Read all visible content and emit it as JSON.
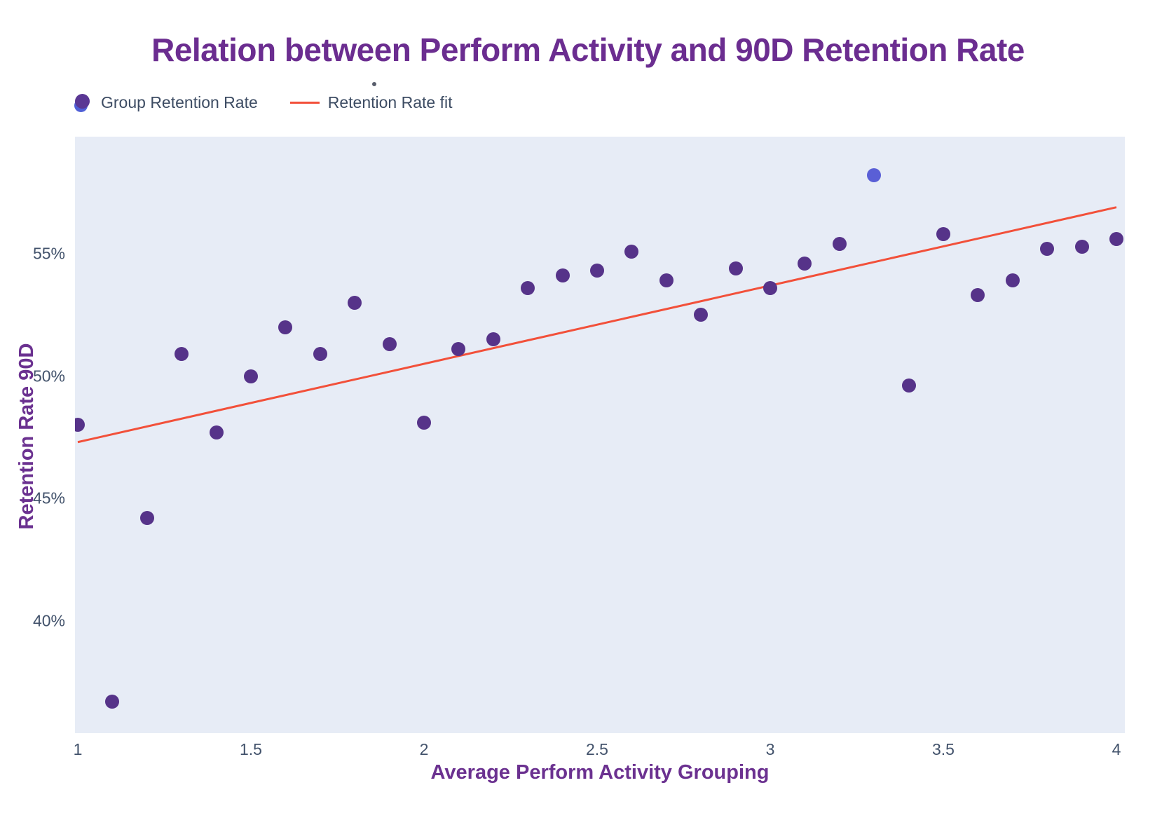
{
  "title": "Relation between Perform Activity and 90D Retention Rate",
  "legend": {
    "series_label": "Group Retention Rate",
    "fit_label": "Retention Rate fit"
  },
  "colors": {
    "point": "#563389",
    "outlier_point": "#5a5fd6",
    "fit_line": "#f2503a",
    "plot_background": "#e7ecf6",
    "title_text": "#6b2d90",
    "axis_title_text": "#6b3190",
    "tick_text": "#42526b"
  },
  "chart_data": {
    "type": "scatter",
    "title": "Relation between Perform Activity and 90D Retention Rate",
    "xlabel": "Average Perform Activity Grouping",
    "ylabel": "Retention Rate 90D",
    "x_ticks": [
      1,
      1.5,
      2,
      2.5,
      3,
      3.5,
      4
    ],
    "y_ticks": [
      55,
      50,
      45,
      40
    ],
    "y_tick_suffix": "%",
    "xlim": [
      0.99,
      4.02
    ],
    "ylim": [
      37.2,
      60.2
    ],
    "grid": false,
    "legend_position": "top-left",
    "series": [
      {
        "name": "Group Retention Rate",
        "points": [
          {
            "x": 1.0,
            "y": 48.0
          },
          {
            "x": 1.1,
            "y": 36.7
          },
          {
            "x": 1.2,
            "y": 44.2
          },
          {
            "x": 1.3,
            "y": 50.9
          },
          {
            "x": 1.4,
            "y": 47.7
          },
          {
            "x": 1.5,
            "y": 50.0
          },
          {
            "x": 1.6,
            "y": 52.0
          },
          {
            "x": 1.7,
            "y": 50.9
          },
          {
            "x": 1.8,
            "y": 53.0
          },
          {
            "x": 1.9,
            "y": 51.3
          },
          {
            "x": 2.0,
            "y": 48.1
          },
          {
            "x": 2.1,
            "y": 51.1
          },
          {
            "x": 2.2,
            "y": 51.5
          },
          {
            "x": 2.3,
            "y": 53.6
          },
          {
            "x": 2.4,
            "y": 54.1
          },
          {
            "x": 2.5,
            "y": 54.3
          },
          {
            "x": 2.6,
            "y": 55.1
          },
          {
            "x": 2.7,
            "y": 53.9
          },
          {
            "x": 2.8,
            "y": 52.5
          },
          {
            "x": 2.9,
            "y": 54.4
          },
          {
            "x": 3.0,
            "y": 53.6
          },
          {
            "x": 3.1,
            "y": 54.6
          },
          {
            "x": 3.2,
            "y": 55.4
          },
          {
            "x": 3.3,
            "y": 58.2,
            "outlier": true
          },
          {
            "x": 3.4,
            "y": 49.6
          },
          {
            "x": 3.5,
            "y": 55.8
          },
          {
            "x": 3.6,
            "y": 53.3
          },
          {
            "x": 3.7,
            "y": 53.9
          },
          {
            "x": 3.8,
            "y": 55.2
          },
          {
            "x": 3.9,
            "y": 55.3
          },
          {
            "x": 4.0,
            "y": 55.6
          }
        ]
      }
    ],
    "fit_line": {
      "name": "Retention Rate fit",
      "x1": 1.0,
      "y1": 47.3,
      "x2": 4.0,
      "y2": 56.9
    }
  }
}
